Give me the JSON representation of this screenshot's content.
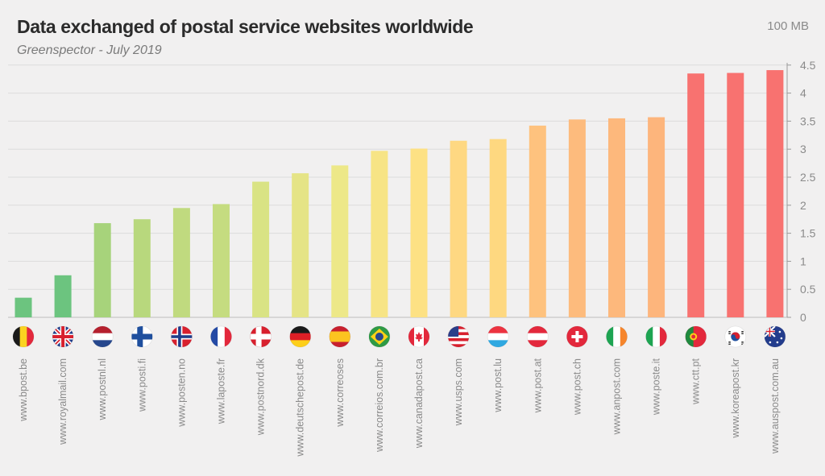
{
  "title": "Data exchanged of postal service websites worldwide",
  "subtitle": "Greenspector - July 2019",
  "unit_label": "100 MB",
  "chart_data": {
    "type": "bar",
    "title": "Data exchanged of postal service websites worldwide",
    "subtitle": "Greenspector - July 2019",
    "xlabel": "",
    "ylabel": "",
    "ylim": [
      0,
      4.5
    ],
    "yticks": [
      "0",
      "0.5",
      "1",
      "1.5",
      "2",
      "2.5",
      "3",
      "3.5",
      "4",
      "4.5"
    ],
    "grid": true,
    "legend": "none",
    "categories": [
      "www.bpost.be",
      "www.royalmail.com",
      "www.postnl.nl",
      "www.posti.fi",
      "www.posten.no",
      "www.laposte.fr",
      "www.postnord.dk",
      "www.deutschepost.de",
      "www.correoses",
      "www.correios.com.br",
      "www.canadapost.ca",
      "www.usps.com",
      "www.post.lu",
      "www.post.at",
      "www.post.ch",
      "www.anpost.com",
      "www.poste.it",
      "www.ctt.pt",
      "www.koreapost.kr",
      "www.auspost.com.au"
    ],
    "values": [
      0.35,
      0.75,
      1.68,
      1.75,
      1.95,
      2.02,
      2.42,
      2.57,
      2.71,
      2.97,
      3.01,
      3.15,
      3.18,
      3.42,
      3.53,
      3.55,
      3.57,
      4.35,
      4.36,
      4.41
    ],
    "colors": [
      "#6cc47f",
      "#6cc47f",
      "#a7d37b",
      "#b8d87d",
      "#c0da7f",
      "#c5dc80",
      "#d9e384",
      "#e5e486",
      "#ede888",
      "#f7e485",
      "#fde184",
      "#fed882",
      "#fed880",
      "#fec27e",
      "#fdbb7d",
      "#fdb87c",
      "#fdb57c",
      "#f87270",
      "#f87270",
      "#f87270"
    ],
    "flags": [
      "belgium-flag-icon",
      "united-kingdom-flag-icon",
      "netherlands-flag-icon",
      "finland-flag-icon",
      "norway-flag-icon",
      "france-flag-icon",
      "denmark-flag-icon",
      "germany-flag-icon",
      "spain-flag-icon",
      "brazil-flag-icon",
      "canada-flag-icon",
      "usa-flag-icon",
      "luxembourg-flag-icon",
      "austria-flag-icon",
      "switzerland-flag-icon",
      "ireland-flag-icon",
      "italy-flag-icon",
      "portugal-flag-icon",
      "south-korea-flag-icon",
      "australia-flag-icon"
    ]
  }
}
